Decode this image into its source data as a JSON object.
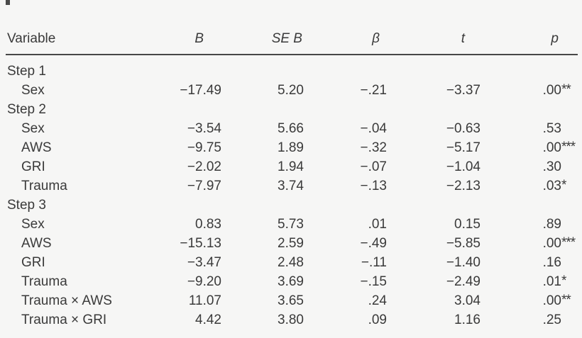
{
  "page": {
    "background_color": "#f6f6f5",
    "text_color": "#3a3a3a",
    "rule_color": "#474747"
  },
  "table": {
    "columns": [
      {
        "key": "variable",
        "label": "Variable"
      },
      {
        "key": "b",
        "label": "B"
      },
      {
        "key": "se_b",
        "label": "SE B"
      },
      {
        "key": "beta",
        "label": "β"
      },
      {
        "key": "t",
        "label": "t"
      },
      {
        "key": "p",
        "label": "p"
      }
    ],
    "rows": [
      {
        "label": "Step 1",
        "indent": false,
        "b": "",
        "se_b": "",
        "beta": "",
        "t": "",
        "p": "",
        "stars": ""
      },
      {
        "label": "Sex",
        "indent": true,
        "b": "−17.49",
        "se_b": "5.20",
        "beta": "−.21",
        "t": "−3.37",
        "p": ".00",
        "stars": "**"
      },
      {
        "label": "Step 2",
        "indent": false,
        "b": "",
        "se_b": "",
        "beta": "",
        "t": "",
        "p": "",
        "stars": ""
      },
      {
        "label": "Sex",
        "indent": true,
        "b": "−3.54",
        "se_b": "5.66",
        "beta": "−.04",
        "t": "−0.63",
        "p": ".53",
        "stars": ""
      },
      {
        "label": "AWS",
        "indent": true,
        "b": "−9.75",
        "se_b": "1.89",
        "beta": "−.32",
        "t": "−5.17",
        "p": ".00",
        "stars": "***"
      },
      {
        "label": "GRI",
        "indent": true,
        "b": "−2.02",
        "se_b": "1.94",
        "beta": "−.07",
        "t": "−1.04",
        "p": ".30",
        "stars": ""
      },
      {
        "label": "Trauma",
        "indent": true,
        "b": "−7.97",
        "se_b": "3.74",
        "beta": "−.13",
        "t": "−2.13",
        "p": ".03",
        "stars": "*"
      },
      {
        "label": "Step 3",
        "indent": false,
        "b": "",
        "se_b": "",
        "beta": "",
        "t": "",
        "p": "",
        "stars": ""
      },
      {
        "label": "Sex",
        "indent": true,
        "b": "0.83",
        "se_b": "5.73",
        "beta": ".01",
        "t": "0.15",
        "p": ".89",
        "stars": ""
      },
      {
        "label": "AWS",
        "indent": true,
        "b": "−15.13",
        "se_b": "2.59",
        "beta": "−.49",
        "t": "−5.85",
        "p": ".00",
        "stars": "***"
      },
      {
        "label": "GRI",
        "indent": true,
        "b": "−3.47",
        "se_b": "2.48",
        "beta": "−.11",
        "t": "−1.40",
        "p": ".16",
        "stars": ""
      },
      {
        "label": "Trauma",
        "indent": true,
        "b": "−9.20",
        "se_b": "3.69",
        "beta": "−.15",
        "t": "−2.49",
        "p": ".01",
        "stars": "*"
      },
      {
        "label": "Trauma × AWS",
        "indent": true,
        "b": "11.07",
        "se_b": "3.65",
        "beta": ".24",
        "t": "3.04",
        "p": ".00",
        "stars": "**"
      },
      {
        "label": "Trauma × GRI",
        "indent": true,
        "b": "4.42",
        "se_b": "3.80",
        "beta": ".09",
        "t": "1.16",
        "p": ".25",
        "stars": ""
      }
    ]
  }
}
